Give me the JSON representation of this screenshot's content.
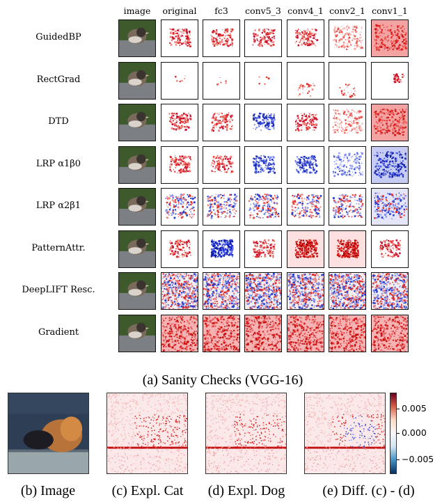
{
  "columns": [
    "image",
    "original",
    "fc3",
    "conv5_3",
    "conv4_1",
    "conv2_1",
    "conv1_1"
  ],
  "rows": [
    {
      "label": "GuidedBP",
      "cells": [
        "red-med",
        "red-med",
        "red-med",
        "red-med",
        "red-light",
        "red-heavy"
      ]
    },
    {
      "label": "RectGrad",
      "cells": [
        "sparse",
        "sparse",
        "sparse",
        "sparse-low",
        "sparse-low",
        "sparse-right"
      ]
    },
    {
      "label": "DTD",
      "cells": [
        "red-med",
        "red-med",
        "blue-med",
        "red-med",
        "red-light",
        "red-heavy"
      ]
    },
    {
      "label": "LRP α1β0",
      "cells": [
        "red-med",
        "red-med",
        "blue-med",
        "blue-med",
        "blue-light",
        "blue-heavy"
      ]
    },
    {
      "label": "LRP α2β1",
      "cells": [
        "mixed",
        "mixed",
        "mixed",
        "mixed",
        "mixed",
        "mixed-blue"
      ]
    },
    {
      "label": "PatternAttr.",
      "cells": [
        "red-med",
        "blue-strong",
        "red-med",
        "red-strong",
        "red-strong",
        "red-med"
      ]
    },
    {
      "label": "DeepLIFT Resc.",
      "cells": [
        "noise",
        "noise",
        "noise",
        "noise",
        "noise",
        "noise"
      ]
    },
    {
      "label": "Gradient",
      "cells": [
        "red-noise",
        "red-noise",
        "red-noise",
        "red-noise",
        "red-noise",
        "red-noise"
      ]
    }
  ],
  "captions": {
    "a": "(a) Sanity Checks (VGG-16)",
    "b": "(b) Image",
    "c": "(c) Expl. Cat",
    "d": "(d) Expl. Dog",
    "e": "(e) Diff. (c) - (d)"
  },
  "colorbar": {
    "ticks": [
      "0.005",
      "0.000",
      "−0.005"
    ],
    "colors": [
      "#67001f",
      "#f7f7f7",
      "#053061"
    ]
  }
}
